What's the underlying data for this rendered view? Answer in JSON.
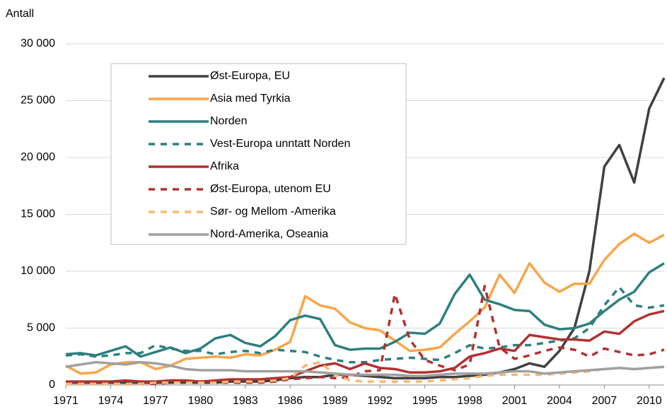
{
  "chart_data": {
    "type": "line",
    "y_label": "Antall",
    "x": [
      1971,
      1972,
      1973,
      1974,
      1975,
      1976,
      1977,
      1978,
      1979,
      1980,
      1981,
      1982,
      1983,
      1984,
      1985,
      1986,
      1987,
      1988,
      1989,
      1990,
      1991,
      1992,
      1993,
      1994,
      1995,
      1996,
      1997,
      1998,
      1999,
      2000,
      2001,
      2002,
      2003,
      2004,
      2005,
      2006,
      2007,
      2008,
      2009,
      2010,
      2011
    ],
    "xlim": [
      1971,
      2011
    ],
    "xticks": [
      1971,
      1974,
      1977,
      1980,
      1983,
      1986,
      1989,
      1992,
      1995,
      1998,
      2001,
      2004,
      2007,
      2010
    ],
    "ylim": [
      0,
      30000
    ],
    "yticks": [
      0,
      {
        "value": 5000,
        "label": "5 000"
      },
      {
        "value": 10000,
        "label": "10 000"
      },
      {
        "value": 15000,
        "label": "15 000"
      },
      {
        "value": 20000,
        "label": "20 000"
      },
      {
        "value": 25000,
        "label": "25 000"
      },
      {
        "value": 30000,
        "label": "30 000"
      }
    ],
    "grid": true,
    "series": [
      {
        "name": "Øst-Europa, EU",
        "color": "#404040",
        "dashed": false,
        "values": [
          200,
          200,
          200,
          200,
          200,
          200,
          200,
          200,
          200,
          200,
          200,
          300,
          300,
          300,
          400,
          600,
          700,
          700,
          900,
          900,
          800,
          700,
          600,
          600,
          600,
          700,
          700,
          800,
          900,
          1100,
          1400,
          1900,
          1600,
          3000,
          5000,
          10000,
          19200,
          21100,
          17800,
          24300,
          27000
        ]
      },
      {
        "name": "Asia med Tyrkia",
        "color": "#f9a54a",
        "dashed": false,
        "values": [
          1700,
          1000,
          1100,
          1800,
          2000,
          2000,
          1400,
          1700,
          2300,
          2400,
          2500,
          2400,
          2700,
          2600,
          3100,
          3800,
          7800,
          7000,
          6700,
          5500,
          5000,
          4800,
          3900,
          3000,
          3100,
          3300,
          4500,
          5600,
          6800,
          9700,
          8100,
          10700,
          9000,
          8200,
          8900,
          8900,
          11000,
          12400,
          13300,
          12500,
          13200
        ]
      },
      {
        "name": "Norden",
        "color": "#2e7f7f",
        "dashed": false,
        "values": [
          2700,
          2800,
          2600,
          3000,
          3400,
          2500,
          2900,
          3300,
          2800,
          3200,
          4100,
          4400,
          3700,
          3400,
          4300,
          5700,
          6100,
          5800,
          3500,
          3100,
          3200,
          3200,
          3800,
          4600,
          4500,
          5400,
          8000,
          9700,
          7500,
          7100,
          6600,
          6500,
          5300,
          4900,
          5000,
          5400,
          6500,
          7500,
          8200,
          9900,
          10700
        ]
      },
      {
        "name": "Vest-Europa unntatt Norden",
        "color": "#2e7f7f",
        "dashed": true,
        "values": [
          2600,
          2700,
          2500,
          2600,
          2800,
          2800,
          3500,
          3200,
          3000,
          3000,
          2700,
          2900,
          3000,
          2800,
          3100,
          3000,
          2900,
          2500,
          2200,
          2000,
          2000,
          2200,
          2300,
          2400,
          2300,
          2200,
          2800,
          3500,
          3200,
          3300,
          3500,
          3500,
          3700,
          3900,
          4100,
          5000,
          7000,
          8600,
          7000,
          6800,
          7000
        ]
      },
      {
        "name": "Afrika",
        "color": "#b03232",
        "dashed": false,
        "values": [
          300,
          300,
          300,
          300,
          400,
          300,
          300,
          400,
          400,
          300,
          400,
          500,
          500,
          500,
          600,
          700,
          1200,
          1700,
          1900,
          1400,
          1900,
          1500,
          1400,
          1100,
          1100,
          1200,
          1500,
          2500,
          2800,
          3200,
          3000,
          4400,
          4200,
          4000,
          4000,
          3900,
          4700,
          4500,
          5600,
          6200,
          6500
        ]
      },
      {
        "name": "Øst-Europa, utenom EU",
        "color": "#b03232",
        "dashed": true,
        "values": [
          100,
          100,
          100,
          100,
          100,
          100,
          100,
          200,
          200,
          200,
          200,
          200,
          200,
          200,
          300,
          500,
          600,
          700,
          600,
          700,
          1200,
          1300,
          8000,
          4000,
          2200,
          1700,
          1300,
          1800,
          8700,
          3300,
          2300,
          2600,
          3000,
          3300,
          3100,
          2500,
          3200,
          2900,
          2600,
          2700,
          3100
        ]
      },
      {
        "name": "Sør- og Mellom -Amerika",
        "color": "#f9b870",
        "dashed": true,
        "values": [
          100,
          100,
          100,
          100,
          100,
          100,
          200,
          200,
          200,
          200,
          200,
          300,
          300,
          300,
          400,
          600,
          1700,
          2000,
          900,
          400,
          300,
          300,
          300,
          300,
          300,
          400,
          500,
          600,
          800,
          900,
          900,
          900,
          900,
          1000,
          1100,
          1200,
          1400,
          1500,
          1400,
          1500,
          1600
        ]
      },
      {
        "name": "Nord-Amerika, Oseania",
        "color": "#a0a0a0",
        "dashed": false,
        "values": [
          1600,
          1800,
          2000,
          1900,
          1800,
          2000,
          1900,
          1700,
          1400,
          1300,
          1300,
          1300,
          1200,
          1200,
          1200,
          1200,
          1200,
          1100,
          1000,
          900,
          900,
          900,
          900,
          800,
          800,
          900,
          1000,
          1000,
          1000,
          1100,
          1200,
          1200,
          1000,
          1100,
          1200,
          1300,
          1400,
          1500,
          1400,
          1500,
          1600
        ]
      }
    ]
  }
}
